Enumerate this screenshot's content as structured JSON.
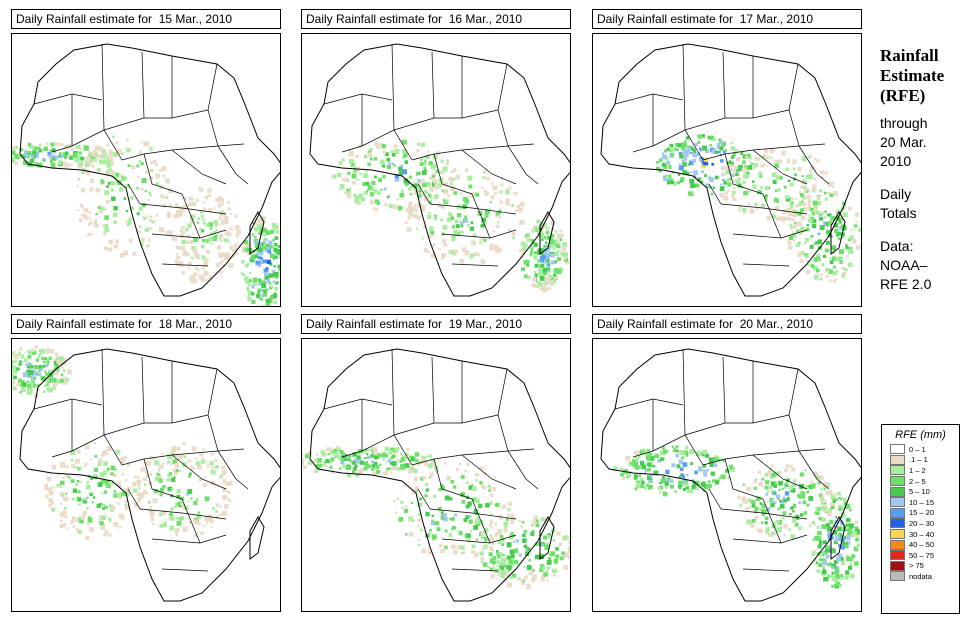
{
  "panels": [
    {
      "id": "p1",
      "title": "Daily Rainfall estimate for  15 Mar., 2010",
      "date": "15 Mar., 2010",
      "seed": 11
    },
    {
      "id": "p2",
      "title": "Daily Rainfall estimate for  16 Mar., 2010",
      "date": "16 Mar., 2010",
      "seed": 23
    },
    {
      "id": "p3",
      "title": "Daily Rainfall estimate for  17 Mar., 2010",
      "date": "17 Mar., 2010",
      "seed": 37
    },
    {
      "id": "p4",
      "title": "Daily Rainfall estimate for  18 Mar., 2010",
      "date": "18 Mar., 2010",
      "seed": 41
    },
    {
      "id": "p5",
      "title": "Daily Rainfall estimate for  19 Mar., 2010",
      "date": "19 Mar., 2010",
      "seed": 53
    },
    {
      "id": "p6",
      "title": "Daily Rainfall estimate for  20 Mar., 2010",
      "date": "20 Mar., 2010",
      "seed": 67
    }
  ],
  "sidebar": {
    "title_line1": "Rainfall",
    "title_line2": "Estimate",
    "title_line3": "(RFE)",
    "through_label": "through",
    "through_date_line1": "20 Mar.",
    "through_date_line2": "2010",
    "totals_line1": "Daily",
    "totals_line2": "Totals",
    "data_line1": "Data:",
    "data_line2": "NOAA–",
    "data_line3": "RFE 2.0"
  },
  "legend": {
    "title": "RFE (mm)",
    "items": [
      {
        "label": "0 – 1",
        "color": "#ffffff"
      },
      {
        "label": ".1 – 1",
        "color": "#eadcc8"
      },
      {
        "label": "1 – 2",
        "color": "#a8eea0"
      },
      {
        "label": "2 – 5",
        "color": "#6ee06a"
      },
      {
        "label": "5 – 10",
        "color": "#46cc4c"
      },
      {
        "label": "10 – 15",
        "color": "#a4c8f2"
      },
      {
        "label": "15 – 20",
        "color": "#5a9cf0"
      },
      {
        "label": "20 – 30",
        "color": "#2262e6"
      },
      {
        "label": "30 – 40",
        "color": "#fad455"
      },
      {
        "label": "40 – 50",
        "color": "#f78a14"
      },
      {
        "label": "50 – 75",
        "color": "#e22818"
      },
      {
        "label": "> 75",
        "color": "#a01010"
      },
      {
        "label": "nodata",
        "color": "#bbbbbb"
      }
    ]
  }
}
